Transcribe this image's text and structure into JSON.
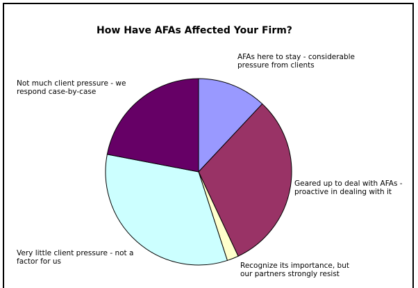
{
  "chart_data": {
    "type": "pie",
    "title": "How Have AFAs Affected Your Firm?",
    "slices": [
      {
        "label": "AFAs here to stay - considerable pressure from clients",
        "value": 12,
        "color": "#9999ff"
      },
      {
        "label": "Geared up to deal with AFAs - proactive in dealing with it",
        "value": 31,
        "color": "#993366"
      },
      {
        "label": "Recognize its importance, but our partners strongly resist",
        "value": 2,
        "color": "#ffffcc"
      },
      {
        "label": "Very little client pressure - not a factor for us",
        "value": 33,
        "color": "#ccffff"
      },
      {
        "label": "Not much client pressure - we respond case-by-case",
        "value": 22,
        "color": "#660066"
      }
    ]
  }
}
